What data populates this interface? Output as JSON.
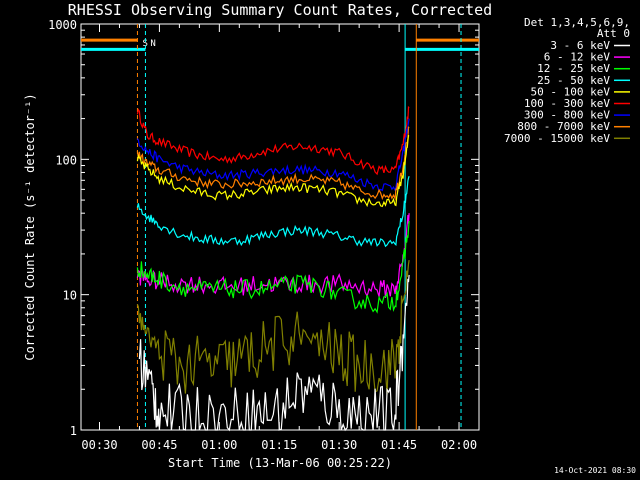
{
  "chart_data": {
    "type": "line",
    "title": "RHESSI Observing Summary Count Rates, Corrected",
    "xlabel": "Start Time (13-Mar-06 00:25:22)",
    "ylabel": "Corrected Count Rate (s⁻¹ detector⁻¹)",
    "yscale": "log",
    "ylim": [
      1,
      1000
    ],
    "xlim_minutes": [
      25.37,
      125
    ],
    "x_ticks": [
      {
        "minute": 30,
        "label": "00:30"
      },
      {
        "minute": 45,
        "label": "00:45"
      },
      {
        "minute": 60,
        "label": "01:00"
      },
      {
        "minute": 75,
        "label": "01:15"
      },
      {
        "minute": 90,
        "label": "01:30"
      },
      {
        "minute": 105,
        "label": "01:45"
      },
      {
        "minute": 120,
        "label": "02:00"
      }
    ],
    "y_ticks": [
      {
        "value": 1,
        "label": "1"
      },
      {
        "value": 10,
        "label": "10"
      },
      {
        "value": 100,
        "label": "100"
      },
      {
        "value": 1000,
        "label": "1000"
      }
    ],
    "legend": {
      "header": [
        "Det 1,3,4,5,6,9,",
        "Att 0"
      ],
      "placement": "top-right",
      "entries": [
        {
          "label": "3 - 6 keV",
          "color": "#ffffff"
        },
        {
          "label": "6 - 12 keV",
          "color": "#ff00ff"
        },
        {
          "label": "12 - 25 keV",
          "color": "#00ff00"
        },
        {
          "label": "25 - 50 keV",
          "color": "#00ffff"
        },
        {
          "label": "50 - 100 keV",
          "color": "#ffff00"
        },
        {
          "label": "100 - 300 keV",
          "color": "#ff0000"
        },
        {
          "label": "300 - 800 keV",
          "color": "#0000ff"
        },
        {
          "label": "800 - 7000 keV",
          "color": "#ff8000"
        },
        {
          "label": "7000 - 15000 keV",
          "color": "#808000"
        }
      ]
    },
    "series": [
      {
        "name": "100 - 300 keV",
        "color": "#ff0000",
        "x": [
          39.5,
          42,
          45,
          50,
          55,
          60,
          65,
          70,
          75,
          80,
          85,
          90,
          95,
          100,
          104,
          106,
          107.5
        ],
        "y": [
          230,
          150,
          135,
          118,
          107,
          100,
          103,
          113,
          120,
          125,
          121,
          112,
          95,
          83,
          83,
          130,
          240
        ]
      },
      {
        "name": "300 - 800 keV",
        "color": "#0000ff",
        "x": [
          39.5,
          42,
          45,
          50,
          55,
          60,
          65,
          70,
          75,
          80,
          85,
          90,
          95,
          100,
          104,
          106,
          107.5
        ],
        "y": [
          140,
          115,
          100,
          87,
          80,
          76,
          77,
          80,
          83,
          84,
          82,
          80,
          70,
          63,
          63,
          110,
          200
        ]
      },
      {
        "name": "800 - 7000 keV",
        "color": "#ff8000",
        "x": [
          39.5,
          42,
          45,
          50,
          55,
          60,
          65,
          70,
          75,
          80,
          85,
          90,
          95,
          100,
          104,
          106,
          107.5
        ],
        "y": [
          110,
          93,
          83,
          74,
          68,
          65,
          66,
          68,
          70,
          72,
          70,
          67,
          59,
          55,
          55,
          90,
          170
        ]
      },
      {
        "name": "50 - 100 keV",
        "color": "#ffff00",
        "x": [
          39.5,
          42,
          45,
          50,
          55,
          60,
          65,
          70,
          75,
          80,
          85,
          90,
          95,
          100,
          104,
          106,
          107.5
        ],
        "y": [
          100,
          85,
          72,
          62,
          57,
          54,
          55,
          58,
          61,
          62,
          60,
          56,
          50,
          47,
          47,
          78,
          150
        ]
      },
      {
        "name": "25 - 50 keV",
        "color": "#00ffff",
        "x": [
          39.5,
          42,
          45,
          50,
          55,
          60,
          65,
          70,
          75,
          80,
          85,
          90,
          95,
          100,
          104,
          106,
          107.5
        ],
        "y": [
          45,
          38,
          33,
          28,
          26,
          25,
          25,
          27,
          29,
          30,
          29,
          27,
          25,
          24,
          24,
          40,
          75
        ]
      },
      {
        "name": "6 - 12 keV",
        "color": "#ff00ff",
        "x": [
          39.5,
          42,
          45,
          50,
          55,
          60,
          65,
          70,
          75,
          80,
          85,
          90,
          95,
          100,
          104,
          106,
          107.5
        ],
        "y": [
          14,
          13,
          12.5,
          12,
          12,
          11.5,
          11.5,
          12,
          12,
          12,
          12,
          12,
          11.5,
          11,
          11,
          18,
          40
        ]
      },
      {
        "name": "12 - 25 keV",
        "color": "#00ff00",
        "x": [
          39.5,
          42,
          45,
          50,
          55,
          60,
          65,
          70,
          75,
          80,
          85,
          90,
          95,
          100,
          104,
          106,
          107.5
        ],
        "y": [
          16,
          14,
          13,
          11.5,
          11,
          11,
          11,
          11,
          11.5,
          12,
          11.5,
          10,
          9,
          8.5,
          9,
          16,
          35
        ]
      },
      {
        "name": "7000 - 15000 keV",
        "color": "#808000",
        "x": [
          39.5,
          42,
          45,
          50,
          55,
          60,
          65,
          70,
          75,
          80,
          85,
          90,
          95,
          100,
          104,
          106,
          107.5
        ],
        "y": [
          7.5,
          5,
          4,
          3,
          3,
          3,
          3.3,
          3.8,
          4.5,
          5,
          4.5,
          3.5,
          3,
          3,
          3,
          8,
          18
        ]
      },
      {
        "name": "3 - 6 keV",
        "color": "#ffffff",
        "x": [
          40,
          43,
          45,
          50,
          55,
          60,
          65,
          70,
          75,
          80,
          85,
          90,
          95,
          100,
          104,
          106,
          107.5
        ],
        "y": [
          3.5,
          2,
          1.4,
          1.3,
          1.3,
          1.2,
          1.3,
          1.3,
          1.4,
          2,
          1.8,
          1.4,
          1.3,
          1.3,
          1.3,
          5,
          14
        ]
      }
    ],
    "flag_lines": [
      {
        "name": "S",
        "minute": 39.5,
        "color": "#ff8000",
        "style": "dashed"
      },
      {
        "name": "N",
        "minute": 41.5,
        "color": "#00ffff",
        "style": "dashed"
      },
      {
        "name": "",
        "minute": 106.5,
        "color": "#00ffff",
        "style": "solid"
      },
      {
        "name": "",
        "minute": 109.3,
        "color": "#ff8000",
        "style": "solid"
      },
      {
        "name": "",
        "minute": 120.5,
        "color": "#00ffff",
        "style": "dashed"
      }
    ],
    "flag_bars": [
      {
        "color": "#ff8000",
        "level": 760,
        "ranges": [
          [
            25.37,
            39.5
          ],
          [
            109.3,
            125
          ]
        ]
      },
      {
        "color": "#00ffff",
        "level": 650,
        "ranges": [
          [
            25.37,
            41.5
          ],
          [
            106.5,
            125
          ]
        ]
      }
    ],
    "timestamp": "14-Oct-2021 08:30"
  }
}
